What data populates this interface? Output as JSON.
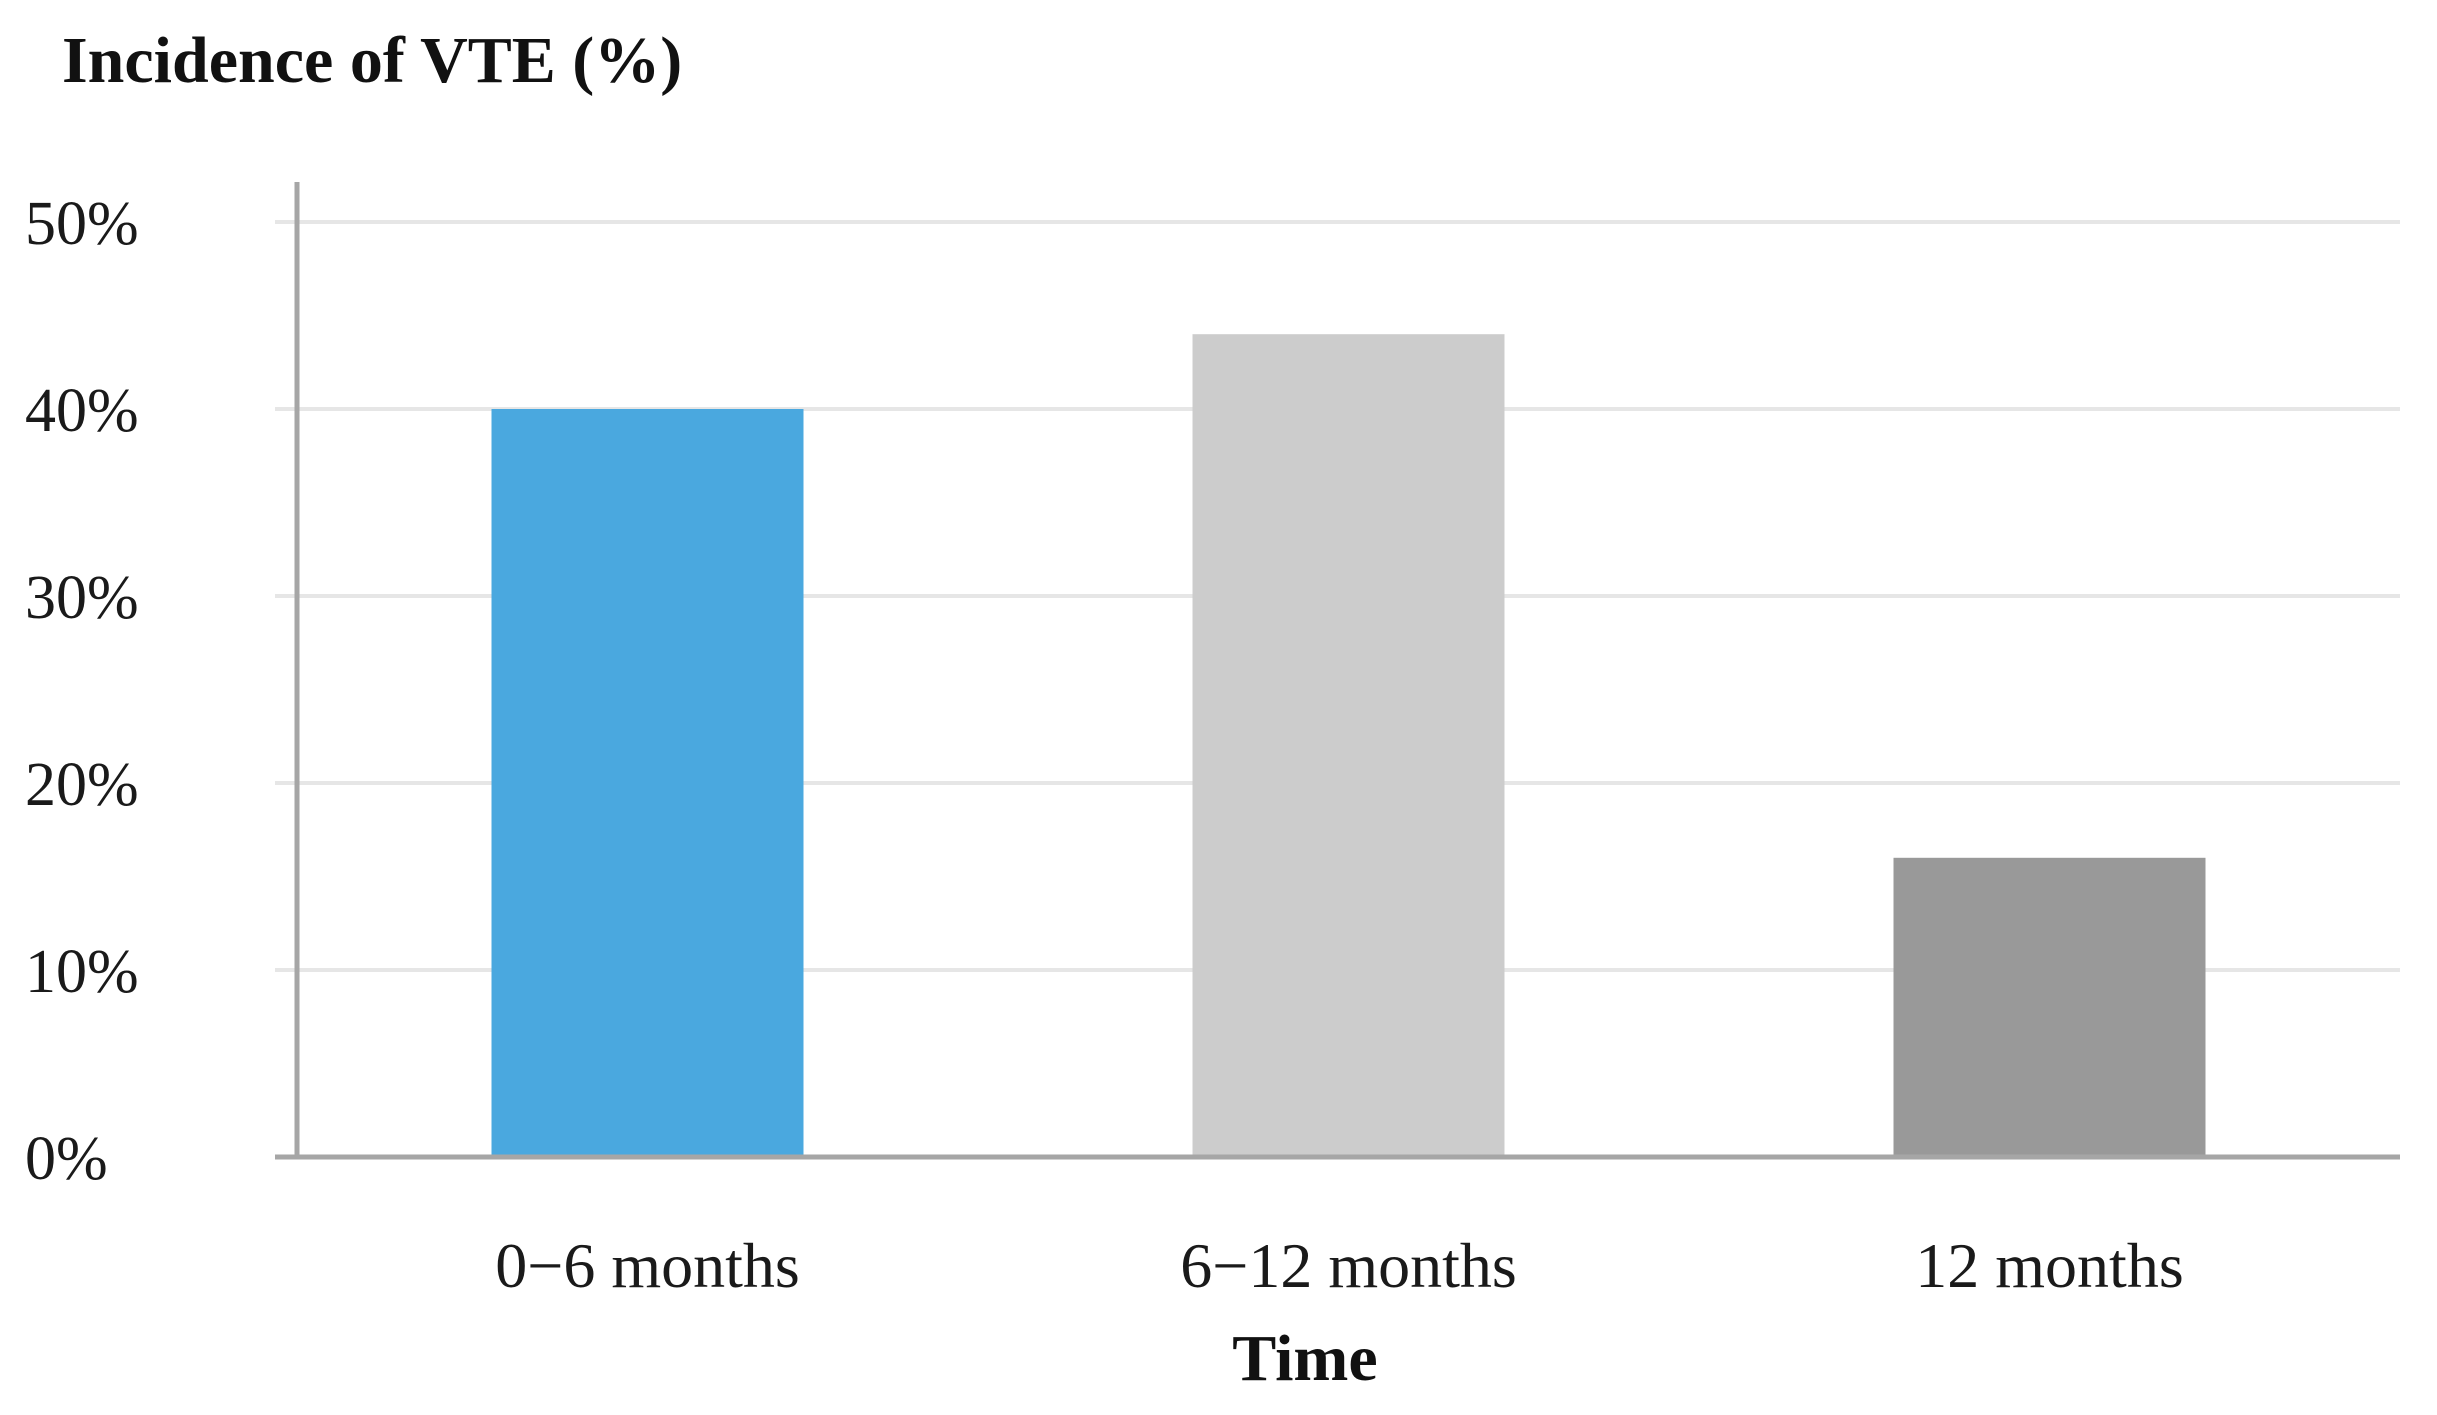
{
  "chart_data": {
    "type": "bar",
    "ylabel": "Incidence of VTE (%)",
    "xlabel": "Time",
    "categories": [
      "0−6  months",
      "6−12 months",
      "12 months"
    ],
    "values": [
      40,
      44,
      16
    ],
    "colors": [
      "#4aa8df",
      "#cccccc",
      "#999999"
    ],
    "ylim": [
      0,
      50
    ],
    "yticks": [
      0,
      10,
      20,
      30,
      40,
      50
    ],
    "ytick_labels": [
      "0%",
      "10%",
      "20%",
      "30%",
      "40%",
      "50%"
    ],
    "grid": true,
    "gridline_color": "#e6e6e6",
    "axis_color": "#a6a6a6"
  }
}
